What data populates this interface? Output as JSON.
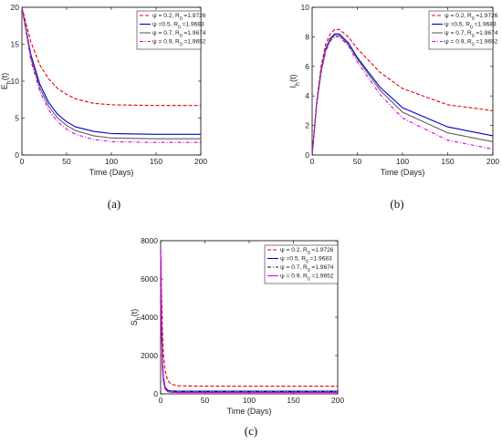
{
  "chart_data": [
    {
      "panel": "a",
      "caption": "(a)",
      "type": "line",
      "xlabel": "Time (Days)",
      "ylabel": "E_h(t)",
      "xlim": [
        0,
        200
      ],
      "ylim": [
        0,
        20
      ],
      "xticks": [
        "0",
        "50",
        "100",
        "150",
        "200"
      ],
      "yticks": [
        "0",
        "5",
        "10",
        "15",
        "20"
      ],
      "legend": "top-right",
      "series": [
        {
          "name": "ψ = 0.2, R_0 =1.9726",
          "color": "#e8000b",
          "dash": "dashed",
          "x": [
            0,
            10,
            20,
            30,
            40,
            50,
            60,
            80,
            100,
            150,
            200
          ],
          "y": [
            20,
            15.3,
            12.2,
            10.3,
            9.0,
            8.2,
            7.6,
            7.0,
            6.8,
            6.7,
            6.7
          ]
        },
        {
          "name": "ψ =0.5, R_0 =1.9683",
          "color": "#0000d0",
          "dash": "solid",
          "x": [
            0,
            10,
            20,
            30,
            40,
            50,
            60,
            80,
            100,
            150,
            200
          ],
          "y": [
            20,
            13.6,
            9.6,
            7.1,
            5.5,
            4.5,
            3.8,
            3.2,
            2.9,
            2.8,
            2.8
          ]
        },
        {
          "name": "ψ = 0.7, R_0 =1.9674",
          "color": "#606060",
          "dash": "solid",
          "x": [
            0,
            10,
            20,
            30,
            40,
            50,
            60,
            80,
            100,
            150,
            200
          ],
          "y": [
            20,
            13.2,
            9.1,
            6.6,
            5.0,
            4.0,
            3.3,
            2.6,
            2.3,
            2.2,
            2.2
          ]
        },
        {
          "name": "ψ = 0.9, R_0 =1.9652",
          "color": "#e000e0",
          "dash": "dashdot",
          "x": [
            0,
            10,
            20,
            30,
            40,
            50,
            60,
            80,
            100,
            150,
            200
          ],
          "y": [
            20,
            12.8,
            8.6,
            6.1,
            4.5,
            3.5,
            2.8,
            2.1,
            1.8,
            1.7,
            1.7
          ]
        }
      ]
    },
    {
      "panel": "b",
      "caption": "(b)",
      "type": "line",
      "xlabel": "Time (Days)",
      "ylabel": "I_h(t)",
      "xlim": [
        0,
        200
      ],
      "ylim": [
        0,
        10
      ],
      "xticks": [
        "0",
        "50",
        "100",
        "150",
        "200"
      ],
      "yticks": [
        "0",
        "2",
        "4",
        "6",
        "8",
        "10"
      ],
      "legend": "top-right",
      "series": [
        {
          "name": "ψ = 0.2, R_0 =1.9726",
          "color": "#e8000b",
          "dash": "dashed",
          "x": [
            0,
            5,
            10,
            15,
            20,
            25,
            30,
            40,
            50,
            75,
            100,
            150,
            200
          ],
          "y": [
            0,
            3.6,
            6.0,
            7.5,
            8.2,
            8.5,
            8.5,
            8.0,
            7.2,
            5.6,
            4.5,
            3.4,
            3.0
          ]
        },
        {
          "name": "ψ =0.5, R_0 =1.9683",
          "color": "#0000d0",
          "dash": "solid",
          "x": [
            0,
            5,
            10,
            15,
            20,
            25,
            30,
            40,
            50,
            75,
            100,
            150,
            200
          ],
          "y": [
            0,
            3.5,
            5.8,
            7.2,
            7.9,
            8.2,
            8.2,
            7.6,
            6.6,
            4.6,
            3.2,
            1.9,
            1.3
          ]
        },
        {
          "name": "ψ = 0.7, R_0 =1.9674",
          "color": "#606060",
          "dash": "solid",
          "x": [
            0,
            5,
            10,
            15,
            20,
            25,
            30,
            40,
            50,
            75,
            100,
            150,
            200
          ],
          "y": [
            0,
            3.4,
            5.7,
            7.1,
            7.8,
            8.1,
            8.1,
            7.5,
            6.5,
            4.4,
            2.9,
            1.5,
            0.9
          ]
        },
        {
          "name": "ψ = 0.9, R_0 =1.9652",
          "color": "#e000e0",
          "dash": "dashdot",
          "x": [
            0,
            5,
            10,
            15,
            20,
            25,
            30,
            40,
            50,
            75,
            100,
            150,
            200
          ],
          "y": [
            0,
            3.4,
            5.6,
            7.0,
            7.7,
            8.0,
            8.0,
            7.4,
            6.3,
            4.1,
            2.5,
            1.0,
            0.4
          ]
        }
      ]
    },
    {
      "panel": "c",
      "caption": "(c)",
      "type": "line",
      "xlabel": "Time (Days)",
      "ylabel": "S_h(t)",
      "xlim": [
        0,
        200
      ],
      "ylim": [
        0,
        8000
      ],
      "xticks": [
        "0",
        "50",
        "100",
        "150",
        "200"
      ],
      "yticks": [
        "0",
        "2000",
        "4000",
        "6000",
        "8000"
      ],
      "legend": "top-right",
      "series": [
        {
          "name": "ψ = 0.2, R_0 =1.9726",
          "color": "#e8000b",
          "dash": "dashed",
          "x": [
            0,
            1,
            2,
            3,
            5,
            8,
            12,
            20,
            50,
            100,
            200
          ],
          "y": [
            7500,
            5200,
            3400,
            2200,
            1200,
            700,
            500,
            420,
            400,
            400,
            400
          ]
        },
        {
          "name": "ψ =0.5, R_0 =1.9683",
          "color": "#0000d0",
          "dash": "solid",
          "x": [
            0,
            1,
            2,
            3,
            5,
            8,
            12,
            20,
            50,
            100,
            200
          ],
          "y": [
            7500,
            3800,
            1800,
            900,
            350,
            180,
            150,
            140,
            140,
            140,
            140
          ]
        },
        {
          "name": "ψ = 0.7, R_0 =1.9674",
          "color": "#111111",
          "dash": "dashdot",
          "x": [
            0,
            1,
            2,
            3,
            5,
            8,
            12,
            20,
            50,
            100,
            200
          ],
          "y": [
            7500,
            3600,
            1600,
            800,
            300,
            140,
            110,
            100,
            100,
            100,
            100
          ]
        },
        {
          "name": "ψ = 0.9, R_0 =1.9652",
          "color": "#e000e0",
          "dash": "solid",
          "x": [
            0,
            1,
            2,
            3,
            5,
            8,
            12,
            20,
            50,
            100,
            200
          ],
          "y": [
            7500,
            3400,
            1400,
            700,
            250,
            110,
            80,
            70,
            70,
            70,
            70
          ]
        }
      ]
    }
  ]
}
